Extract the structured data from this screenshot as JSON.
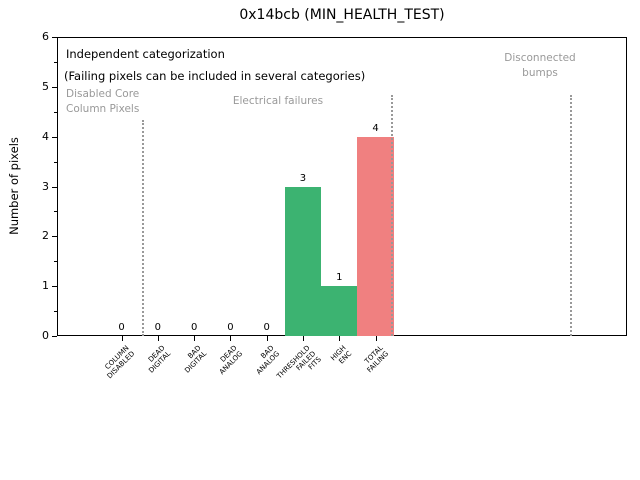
{
  "annotations": {
    "line1": "Independent categorization",
    "line2": "(Failing pixels can be included in several categories)"
  },
  "sections": [
    {
      "label": "Disabled Core\nColumn Pixels"
    },
    {
      "label": "Electrical failures"
    },
    {
      "label": "Disconnected\nbumps"
    }
  ],
  "chart_data": {
    "type": "bar",
    "title": "0x14bcb (MIN_HEALTH_TEST)",
    "xlabel": "",
    "ylabel": "Number of pixels",
    "ylim": [
      0,
      6
    ],
    "yticks": [
      0,
      1,
      2,
      3,
      4,
      5,
      6
    ],
    "categories": [
      "COLUMN\nDISABLED",
      "DEAD\nDIGITAL",
      "BAD\nDIGITAL",
      "DEAD\nANALOG",
      "BAD\nANALOG",
      "THRESHOLD\nFAILED\nFITS",
      "HIGH\nENC",
      "TOTAL\nFAILING"
    ],
    "values": [
      0,
      0,
      0,
      0,
      0,
      3,
      1,
      4
    ],
    "value_labels": [
      "0",
      "0",
      "0",
      "0",
      "0",
      "3",
      "1",
      "4"
    ],
    "bar_colors": [
      "#3CB371",
      "#3CB371",
      "#3CB371",
      "#3CB371",
      "#3CB371",
      "#3CB371",
      "#3CB371",
      "#F08080"
    ],
    "grid": false,
    "legend": false,
    "xlim_categories": [
      -1.78,
      13.93
    ],
    "separators": [
      {
        "x": 0.59,
        "y_top": 4.33
      },
      {
        "x": 7.45,
        "y_top": 4.84
      },
      {
        "x": 12.38,
        "y_top": 4.84
      }
    ],
    "colors": {
      "bar_green": "#3CB371",
      "bar_red": "#F08080",
      "section_text": "#999999",
      "separator": "#999999",
      "axis": "#000000"
    }
  }
}
